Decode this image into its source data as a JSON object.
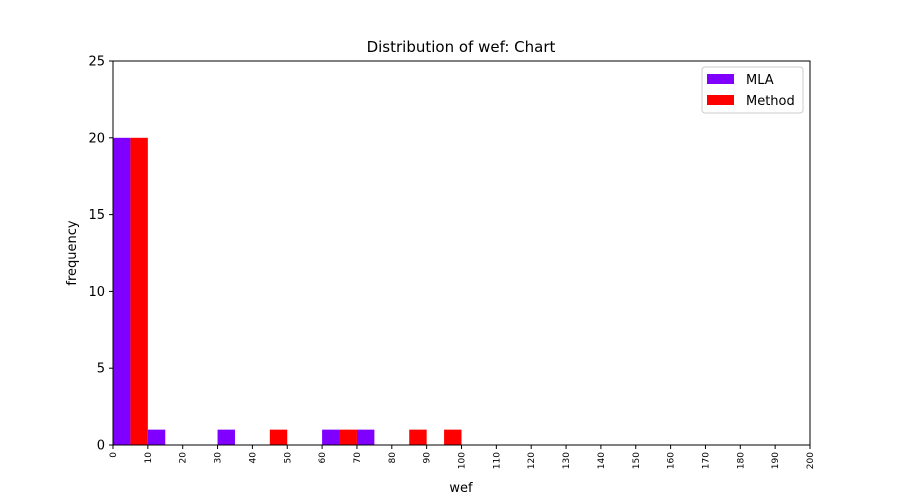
{
  "chart_data": {
    "type": "bar",
    "title": "Distribution of wef: Chart",
    "xlabel": "wef",
    "ylabel": "frequency",
    "xlim": [
      0,
      200
    ],
    "ylim": [
      0,
      25
    ],
    "bin_width": 10,
    "x_ticks": [
      0,
      10,
      20,
      30,
      40,
      50,
      60,
      70,
      80,
      90,
      100,
      110,
      120,
      130,
      140,
      150,
      160,
      170,
      180,
      190,
      200
    ],
    "y_ticks": [
      0,
      5,
      10,
      15,
      20,
      25
    ],
    "bin_starts": [
      0,
      10,
      20,
      30,
      40,
      50,
      60,
      70,
      80,
      90,
      100,
      110,
      120,
      130,
      140,
      150,
      160,
      170,
      180,
      190
    ],
    "series": [
      {
        "name": "MLA",
        "color": "#7f00ff",
        "values": [
          20,
          1,
          0,
          1,
          0,
          0,
          1,
          1,
          0,
          0,
          0,
          0,
          0,
          0,
          0,
          0,
          0,
          0,
          0,
          0
        ]
      },
      {
        "name": "Method",
        "color": "#ff0000",
        "values": [
          20,
          0,
          0,
          0,
          1,
          0,
          1,
          0,
          1,
          1,
          0,
          0,
          0,
          0,
          0,
          0,
          0,
          0,
          0,
          0
        ]
      }
    ],
    "legend_position": "top-right",
    "grid": false
  }
}
